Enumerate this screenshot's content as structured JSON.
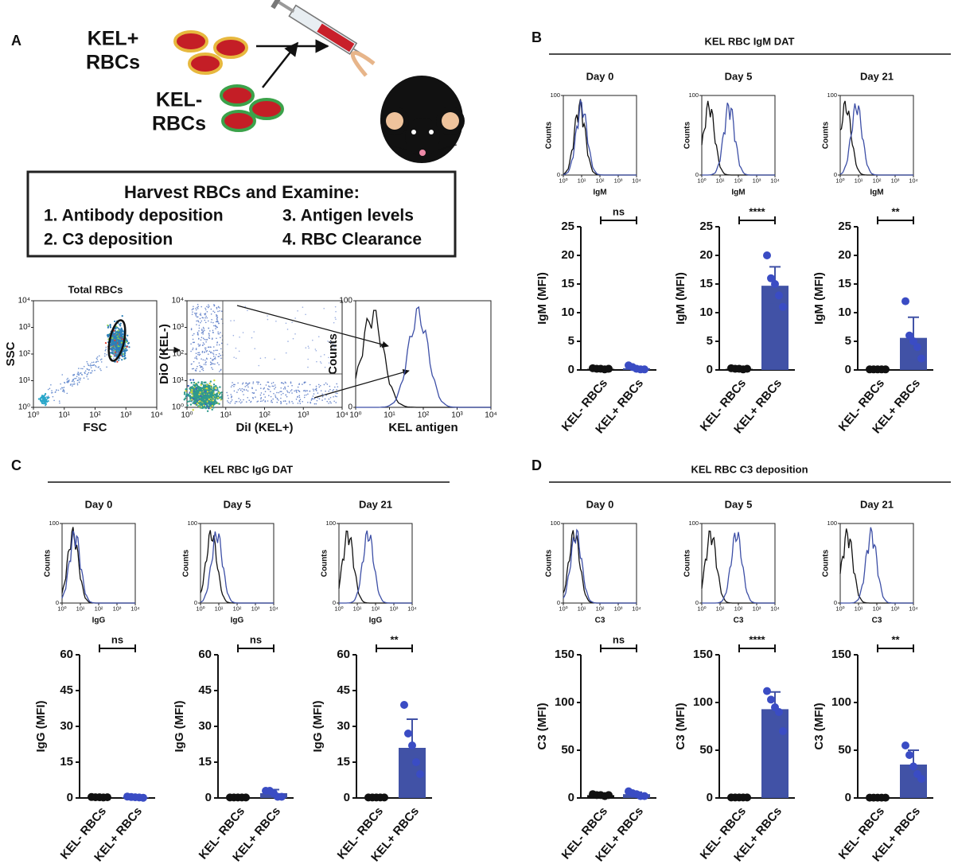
{
  "panel_a": {
    "letter": "A",
    "kel_pos": "KEL+",
    "kel_pos_rbcs": "RBCs",
    "kel_neg": "KEL-",
    "kel_neg_rbcs": "RBCs",
    "box_title": "Harvest RBCs and Examine:",
    "box_items": [
      "1. Antibody deposition",
      "2. C3 deposition",
      "3. Antigen levels",
      "4. RBC Clearance"
    ],
    "flow_plots": [
      {
        "title": "Total RBCs",
        "xlabel": "FSC",
        "ylabel": "SSC"
      },
      {
        "xlabel": "DiI (KEL+)",
        "ylabel": "DiO (KEL-)"
      },
      {
        "xlabel": "KEL antigen",
        "ylabel": "Counts"
      }
    ]
  },
  "log_ticks": [
    {
      "value": 1,
      "label": "10⁰"
    },
    {
      "value": 10,
      "label": "10¹"
    },
    {
      "value": 100,
      "label": "10²"
    },
    {
      "value": 1000,
      "label": "10³"
    },
    {
      "value": 10000,
      "label": "10⁴"
    }
  ],
  "count_ticks": [
    0,
    100
  ],
  "hist_ylabel": "Counts",
  "categories": [
    "KEL- RBCs",
    "KEL+ RBCs"
  ],
  "colors": [
    "#111111",
    "#4152a6"
  ],
  "panels": [
    {
      "letter": "B",
      "title": "KEL RBC IgM DAT",
      "marker": "IgM",
      "ylabel": "IgM (MFI)",
      "ylim": [
        0,
        25
      ],
      "yticks": [
        0,
        5,
        10,
        15,
        20,
        25
      ],
      "charts": [
        {
          "day": "Day 0",
          "significance": "ns",
          "values": [
            0.2,
            0.3
          ],
          "errors": [
            0.1,
            0.3
          ],
          "points": [
            [
              0.3,
              0.2,
              0.2,
              0.1,
              0.2
            ],
            [
              0.8,
              0.5,
              0.2,
              0.1,
              0.1
            ]
          ]
        },
        {
          "day": "Day 5",
          "significance": "****",
          "values": [
            0.2,
            14.7
          ],
          "errors": [
            0.1,
            3.3
          ],
          "points": [
            [
              0.3,
              0.2,
              0.2,
              0.1,
              0.2
            ],
            [
              20,
              16,
              15,
              13,
              11
            ]
          ]
        },
        {
          "day": "Day 21",
          "significance": "**",
          "values": [
            0.1,
            5.6
          ],
          "errors": [
            0.1,
            3.6
          ],
          "points": [
            [
              0.1,
              0.1,
              0.1,
              0.1,
              0.1
            ],
            [
              12,
              6,
              5,
              4,
              2
            ]
          ]
        }
      ]
    },
    {
      "letter": "C",
      "title": "KEL RBC IgG DAT",
      "marker": "IgG",
      "ylabel": "IgG (MFI)",
      "ylim": [
        0,
        60
      ],
      "yticks": [
        0,
        15,
        30,
        45,
        60
      ],
      "charts": [
        {
          "day": "Day 0",
          "significance": "ns",
          "values": [
            0.3,
            0.3
          ],
          "errors": [
            0.1,
            0.2
          ],
          "points": [
            [
              0.4,
              0.3,
              0.3,
              0.2,
              0.3
            ],
            [
              0.6,
              0.4,
              0.3,
              0.2,
              0.1
            ]
          ]
        },
        {
          "day": "Day 5",
          "significance": "ns",
          "values": [
            0.2,
            2
          ],
          "errors": [
            0.1,
            1.5
          ],
          "points": [
            [
              0.2,
              0.2,
              0.2,
              0.2,
              0.2
            ],
            [
              3,
              3,
              2,
              0.5,
              0.5
            ]
          ]
        },
        {
          "day": "Day 21",
          "significance": "**",
          "values": [
            0.2,
            21
          ],
          "errors": [
            0.1,
            12
          ],
          "points": [
            [
              0.2,
              0.2,
              0.2,
              0.2,
              0.2
            ],
            [
              39,
              27,
              22,
              15,
              10
            ]
          ]
        }
      ]
    },
    {
      "letter": "D",
      "title": "KEL RBC C3 deposition",
      "marker": "C3",
      "ylabel": "C3 (MFI)",
      "ylim": [
        0,
        150
      ],
      "yticks": [
        0,
        50,
        100,
        150
      ],
      "charts": [
        {
          "day": "Day 0",
          "significance": "ns",
          "values": [
            3,
            4
          ],
          "errors": [
            1,
            2
          ],
          "points": [
            [
              4,
              3,
              3,
              2,
              3
            ],
            [
              7,
              5,
              4,
              2,
              2
            ]
          ]
        },
        {
          "day": "Day 5",
          "significance": "****",
          "values": [
            0.5,
            93
          ],
          "errors": [
            0.2,
            18
          ],
          "points": [
            [
              0.5,
              0.5,
              0.5,
              0.5,
              0.5
            ],
            [
              112,
              103,
              95,
              90,
              70
            ]
          ]
        },
        {
          "day": "Day 21",
          "significance": "**",
          "values": [
            0.3,
            35
          ],
          "errors": [
            0.1,
            15
          ],
          "points": [
            [
              0.3,
              0.3,
              0.3,
              0.3,
              0.3
            ],
            [
              55,
              45,
              33,
              25,
              20
            ]
          ]
        }
      ]
    }
  ]
}
